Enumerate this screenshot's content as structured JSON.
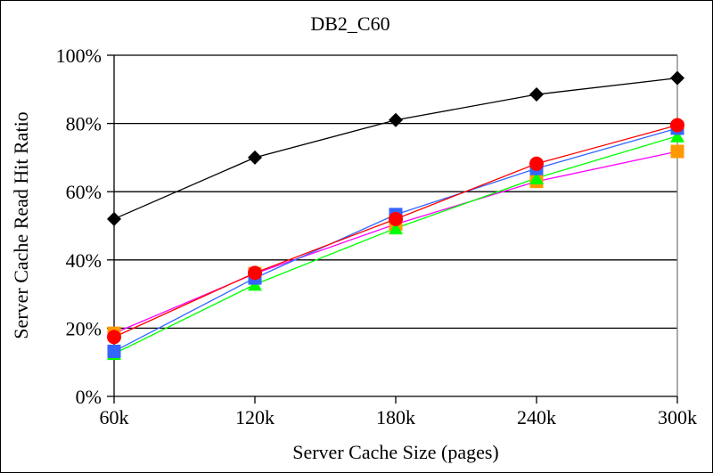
{
  "chart_data": {
    "type": "line",
    "title": "DB2_C60",
    "xlabel": "Server Cache Size (pages)",
    "ylabel": "Server Cache Read Hit Ratio",
    "categories": [
      "60k",
      "120k",
      "180k",
      "240k",
      "300k"
    ],
    "ylim": [
      0,
      100
    ],
    "yticks": [
      0,
      20,
      40,
      60,
      80,
      100
    ],
    "ytick_labels": [
      "0%",
      "20%",
      "40%",
      "60%",
      "80%",
      "100%"
    ],
    "grid": "horizontal",
    "legend": "none",
    "series": [
      {
        "name": "series-black-diamond",
        "line_color": "#000000",
        "marker_color": "#000000",
        "marker": "diamond",
        "values": [
          52,
          70,
          81,
          88.5,
          93.3
        ]
      },
      {
        "name": "series-magenta-orange-square",
        "line_color": "#ff00ff",
        "marker_color": "#ff9900",
        "marker": "square",
        "values": [
          18.5,
          36,
          50.5,
          63,
          71.8
        ]
      },
      {
        "name": "series-green-triangle",
        "line_color": "#00ff00",
        "marker_color": "#00ff00",
        "marker": "triangle",
        "values": [
          12.5,
          32.8,
          49.3,
          64,
          76.3
        ]
      },
      {
        "name": "series-blue-square",
        "line_color": "#3366ff",
        "marker_color": "#3366ff",
        "marker": "square",
        "values": [
          13.2,
          34.7,
          53.3,
          66.8,
          78.6
        ]
      },
      {
        "name": "series-red-circle",
        "line_color": "#ff0000",
        "marker_color": "#ff0000",
        "marker": "circle",
        "values": [
          17.4,
          36.2,
          52,
          68.2,
          79.5
        ]
      }
    ]
  }
}
